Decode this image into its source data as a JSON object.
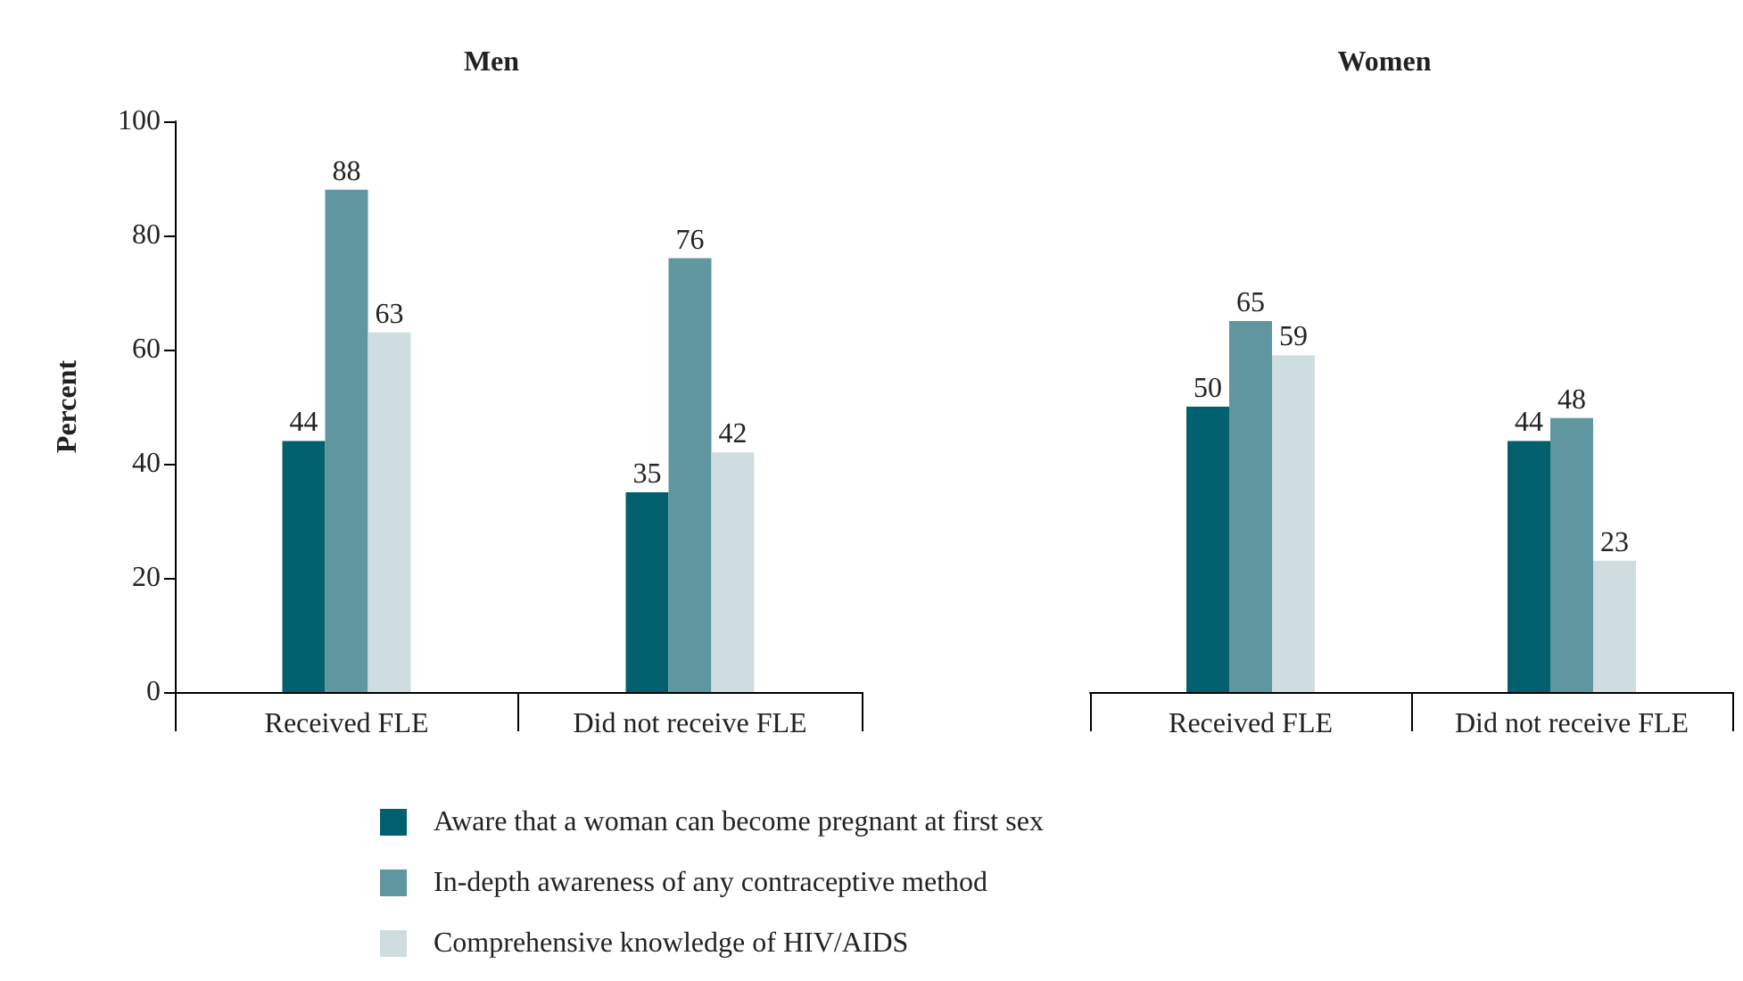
{
  "chart_data": [
    {
      "type": "bar",
      "title": "Men",
      "ylabel": "Percent",
      "categories": [
        "Received FLE",
        "Did not receive FLE"
      ],
      "series": [
        {
          "name": "Aware that a woman can become pregnant at first sex",
          "color": "#00606e",
          "values": [
            44,
            35
          ]
        },
        {
          "name": "In-depth awareness of any contraceptive method",
          "color": "#5f96a0",
          "values": [
            88,
            76
          ]
        },
        {
          "name": "Comprehensive knowledge of HIV/AIDS",
          "color": "#cfdde0",
          "values": [
            63,
            42
          ]
        }
      ],
      "ylim": [
        0,
        100
      ],
      "yticks": [
        0,
        20,
        40,
        60,
        80,
        100
      ],
      "grid": false,
      "legend": "bottom",
      "data_labels": true
    },
    {
      "type": "bar",
      "title": "Women",
      "categories": [
        "Received FLE",
        "Did not receive FLE"
      ],
      "series": [
        {
          "color": "#00606e",
          "values": [
            50,
            44
          ]
        },
        {
          "color": "#5f96a0",
          "values": [
            65,
            48
          ]
        },
        {
          "color": "#cfdde0",
          "values": [
            59,
            23
          ]
        }
      ],
      "ylim": [
        0,
        100
      ],
      "yticks": [
        0,
        20,
        40,
        60,
        80,
        100
      ],
      "grid": false,
      "tick_labels": "x",
      "data_labels": true
    }
  ]
}
